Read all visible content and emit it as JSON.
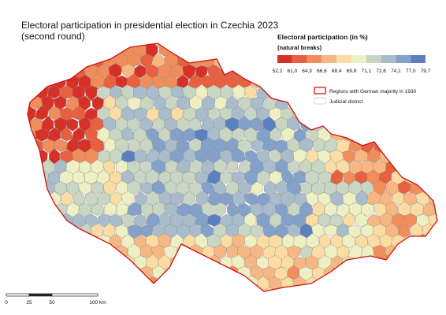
{
  "header": {
    "title": "Electoral participation in presidential election in Czechia 2023",
    "subtitle": "(second round)"
  },
  "legend": {
    "title": "Electoral participation (in %)",
    "method": "(natural breaks)",
    "breaks": [
      "52,2",
      "61,0",
      "64,3",
      "66,6",
      "68,4",
      "69,8",
      "71,1",
      "72,6",
      "74,1",
      "77,0",
      "79,7"
    ],
    "colors": [
      "#d73027",
      "#e8603f",
      "#f08d5a",
      "#f7b783",
      "#fbdca3",
      "#eef0c4",
      "#c9d6c3",
      "#a9bccb",
      "#84a1c9",
      "#5b80c0"
    ],
    "items": [
      "Regions with German majority in 1930",
      "Judicial district"
    ]
  },
  "scale_bar": {
    "labels": [
      "0",
      "25",
      "50",
      "100 km"
    ]
  }
}
